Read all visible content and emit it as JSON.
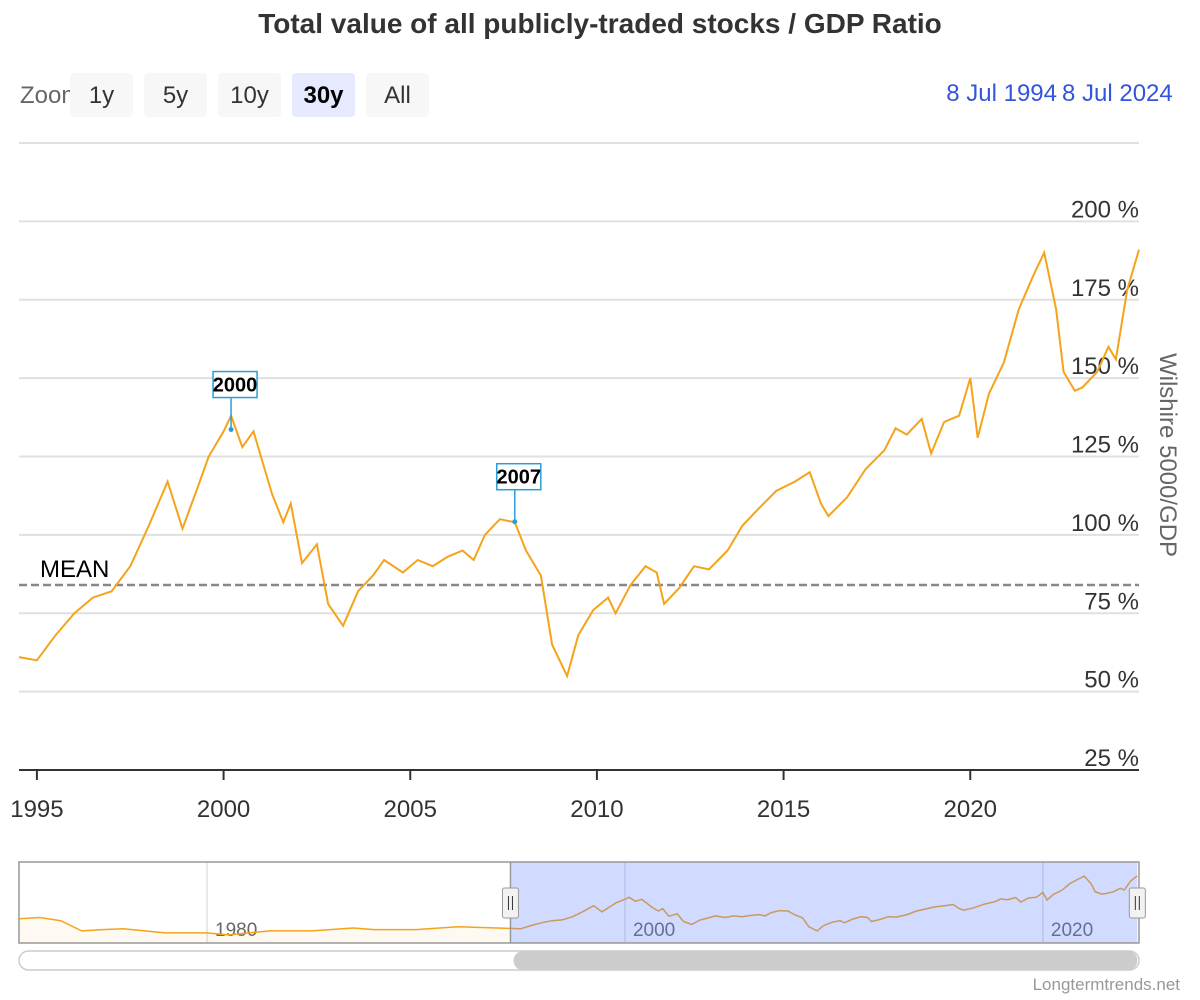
{
  "chart_data": {
    "type": "line",
    "title": "Total value of all publicly-traded stocks / GDP Ratio",
    "zoom": {
      "label": "Zoom",
      "buttons": [
        "1y",
        "5y",
        "10y",
        "30y",
        "All"
      ],
      "selected": 3
    },
    "range": {
      "from": "8 Jul 1994",
      "to": "8 Jul 2024"
    },
    "y_axis_label": "Wilshire 5000/GDP",
    "x": [
      1994.52,
      1995.0,
      1995.5,
      1996.0,
      1996.5,
      1997.0,
      1997.5,
      1998.0,
      1998.5,
      1998.9,
      1999.3,
      1999.6,
      2000.0,
      2000.2,
      2000.5,
      2000.8,
      2001.0,
      2001.3,
      2001.6,
      2001.8,
      2002.1,
      2002.5,
      2002.8,
      2003.2,
      2003.6,
      2004.0,
      2004.3,
      2004.8,
      2005.2,
      2005.6,
      2006.0,
      2006.4,
      2006.7,
      2007.0,
      2007.4,
      2007.8,
      2008.1,
      2008.5,
      2008.8,
      2009.2,
      2009.5,
      2009.9,
      2010.3,
      2010.5,
      2010.9,
      2011.3,
      2011.6,
      2011.8,
      2012.2,
      2012.6,
      2013.0,
      2013.5,
      2013.9,
      2014.3,
      2014.8,
      2015.3,
      2015.7,
      2016.0,
      2016.2,
      2016.7,
      2017.2,
      2017.7,
      2018.0,
      2018.3,
      2018.7,
      2018.95,
      2019.3,
      2019.7,
      2020.0,
      2020.2,
      2020.5,
      2020.9,
      2021.3,
      2021.7,
      2021.98,
      2022.3,
      2022.5,
      2022.8,
      2023.0,
      2023.4,
      2023.7,
      2023.9,
      2024.2,
      2024.52
    ],
    "series": [
      {
        "color": "#f5a31a",
        "values": [
          61,
          60,
          68,
          75,
          80,
          82,
          90,
          103,
          117,
          102,
          115,
          125,
          133,
          138,
          128,
          133,
          125,
          113,
          104,
          110,
          91,
          97,
          78,
          71,
          82,
          87,
          92,
          88,
          92,
          90,
          93,
          95,
          92,
          100,
          105,
          104,
          95,
          87,
          65,
          55,
          68,
          76,
          80,
          75,
          84,
          90,
          88,
          78,
          83,
          90,
          89,
          95,
          103,
          108,
          114,
          117,
          120,
          110,
          106,
          112,
          121,
          127,
          134,
          132,
          137,
          126,
          136,
          138,
          150,
          131,
          145,
          155,
          172,
          183,
          190,
          172,
          152,
          146,
          147,
          152,
          160,
          156,
          178,
          191
        ]
      }
    ],
    "xlim": [
      1994.52,
      2024.52
    ],
    "xticks": [
      1995,
      2000,
      2005,
      2010,
      2015,
      2020
    ],
    "ylim": [
      25,
      225
    ],
    "yticks": [
      {
        "value": 25,
        "label": "25 %"
      },
      {
        "value": 50,
        "label": "50 %"
      },
      {
        "value": 75,
        "label": "75 %"
      },
      {
        "value": 100,
        "label": "100 %"
      },
      {
        "value": 125,
        "label": "125 %"
      },
      {
        "value": 150,
        "label": "150 %"
      },
      {
        "value": 175,
        "label": "175 %"
      },
      {
        "value": 200,
        "label": "200 %"
      }
    ],
    "grid": true,
    "mean": {
      "label": "MEAN",
      "value": 84
    },
    "annotations": [
      {
        "label": "2000",
        "x": 2000.2,
        "y": 133.6
      },
      {
        "label": "2007",
        "x": 2007.8,
        "y": 104.2
      }
    ],
    "navigator": {
      "xlim": [
        1971,
        2024.6
      ],
      "xticks": [
        1980,
        2000,
        2020
      ],
      "x": [
        1971,
        1972,
        1973,
        1974,
        1975,
        1976,
        1978,
        1980,
        1981,
        1982,
        1983,
        1985,
        1987,
        1988,
        1990,
        1992,
        1994.52
      ],
      "values": [
        85,
        88,
        80,
        55,
        58,
        60,
        50,
        50,
        45,
        50,
        55,
        55,
        62,
        58,
        58,
        65,
        61
      ]
    },
    "credits": "Longtermtrends.net"
  }
}
